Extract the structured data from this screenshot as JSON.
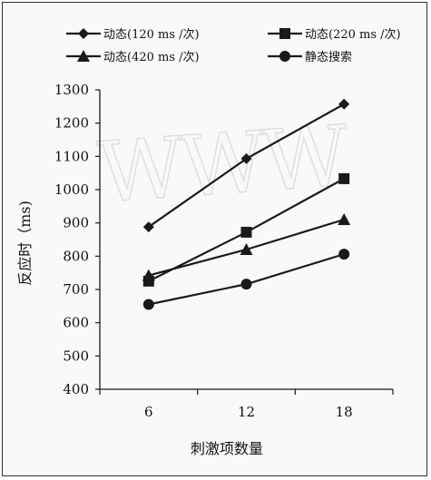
{
  "chart_data": {
    "type": "line",
    "x": [
      6,
      12,
      18
    ],
    "series": [
      {
        "name": "动态(120 ms /次)",
        "marker": "diamond",
        "values": [
          888,
          1093,
          1257
        ]
      },
      {
        "name": "动态(220 ms /次)",
        "marker": "square",
        "values": [
          725,
          872,
          1033
        ]
      },
      {
        "name": "动态(420 ms /次)",
        "marker": "triangle",
        "values": [
          742,
          820,
          910
        ]
      },
      {
        "name": "静态搜索",
        "marker": "circle",
        "values": [
          655,
          716,
          806
        ]
      }
    ],
    "xlabel": "刺激项数量",
    "ylabel": "反应时（ms)",
    "ylim": [
      400,
      1300
    ],
    "yticks": [
      400,
      500,
      600,
      700,
      800,
      900,
      1000,
      1100,
      1200,
      1300
    ],
    "xticks": [
      6,
      12,
      18
    ],
    "legend_position": "top",
    "grid": false,
    "line_color": "#1a1a1a",
    "watermark": "WWW"
  }
}
